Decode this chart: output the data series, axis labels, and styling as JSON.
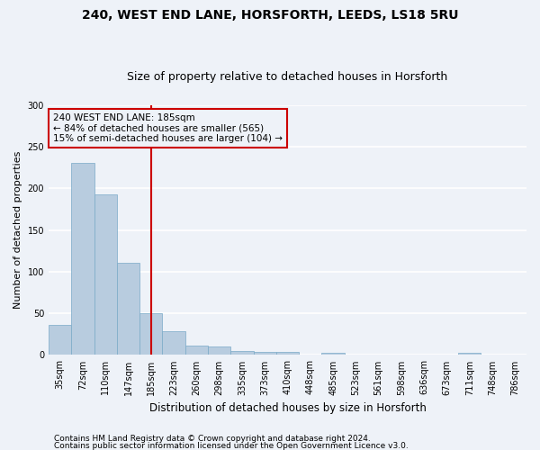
{
  "title1": "240, WEST END LANE, HORSFORTH, LEEDS, LS18 5RU",
  "title2": "Size of property relative to detached houses in Horsforth",
  "xlabel": "Distribution of detached houses by size in Horsforth",
  "ylabel": "Number of detached properties",
  "footnote1": "Contains HM Land Registry data © Crown copyright and database right 2024.",
  "footnote2": "Contains public sector information licensed under the Open Government Licence v3.0.",
  "bin_labels": [
    "35sqm",
    "72sqm",
    "110sqm",
    "147sqm",
    "185sqm",
    "223sqm",
    "260sqm",
    "298sqm",
    "335sqm",
    "373sqm",
    "410sqm",
    "448sqm",
    "485sqm",
    "523sqm",
    "561sqm",
    "598sqm",
    "636sqm",
    "673sqm",
    "711sqm",
    "748sqm",
    "786sqm"
  ],
  "bar_values": [
    36,
    231,
    193,
    111,
    50,
    29,
    11,
    10,
    5,
    4,
    4,
    0,
    3,
    0,
    0,
    0,
    0,
    0,
    3,
    0,
    0
  ],
  "bar_color": "#b8ccdf",
  "bar_edge_color": "#7aaac8",
  "vline_x_index": 4,
  "vline_color": "#cc0000",
  "annotation_line1": "240 WEST END LANE: 185sqm",
  "annotation_line2": "← 84% of detached houses are smaller (565)",
  "annotation_line3": "15% of semi-detached houses are larger (104) →",
  "annotation_box_edge_color": "#cc0000",
  "ylim": [
    0,
    300
  ],
  "yticks": [
    0,
    50,
    100,
    150,
    200,
    250,
    300
  ],
  "bg_color": "#eef2f8",
  "grid_color": "#ffffff",
  "title1_fontsize": 10,
  "title2_fontsize": 9,
  "xlabel_fontsize": 8.5,
  "ylabel_fontsize": 8,
  "tick_fontsize": 7,
  "annotation_fontsize": 7.5,
  "footnote_fontsize": 6.5
}
